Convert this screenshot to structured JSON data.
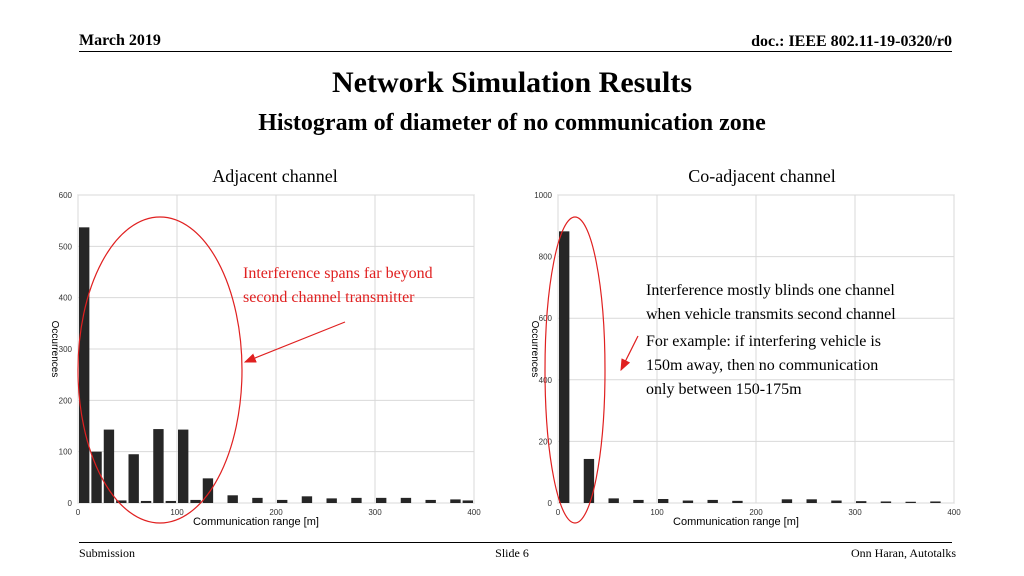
{
  "header": {
    "date": "March 2019",
    "doc": "doc.: IEEE 802.11-19-0320/r0"
  },
  "title": "Network Simulation Results",
  "subtitle": "Histogram of diameter of no communication zone",
  "colors": {
    "bar": "#262626",
    "annotation": "#e02020",
    "grid": "#d9d9d9"
  },
  "annotations": {
    "left": [
      "Interference spans far beyond",
      "second channel transmitter"
    ],
    "right1": [
      "Interference mostly blinds one channel",
      "when vehicle transmits second channel"
    ],
    "right2": [
      "For example: if interfering vehicle is",
      "150m away, then no communication",
      "only between 150-175m"
    ]
  },
  "footer": {
    "left": "Submission",
    "center": "Slide 6",
    "right": "Onn Haran, Autotalks"
  },
  "chart_data": [
    {
      "type": "bar",
      "panel_label": "Adjacent channel",
      "xlabel": "Communication range [m]",
      "ylabel": "Occurrences",
      "xlim": [
        0,
        400
      ],
      "ylim": [
        0,
        600
      ],
      "xticks": [
        0,
        100,
        200,
        300,
        400
      ],
      "yticks": [
        0,
        100,
        200,
        300,
        400,
        500,
        600
      ],
      "bin_width": 12.5,
      "x": [
        6.25,
        18.75,
        31.25,
        43.75,
        56.25,
        68.75,
        81.25,
        93.75,
        106.25,
        118.75,
        131.25,
        143.75,
        156.25,
        168.75,
        181.25,
        193.75,
        206.25,
        218.75,
        231.25,
        243.75,
        256.25,
        268.75,
        281.25,
        293.75,
        306.25,
        318.75,
        331.25,
        343.75,
        356.25,
        368.75,
        381.25,
        393.75
      ],
      "values": [
        537,
        100,
        143,
        5,
        95,
        4,
        144,
        4,
        143,
        6,
        48,
        0,
        15,
        0,
        10,
        0,
        6,
        0,
        13,
        0,
        9,
        0,
        10,
        0,
        10,
        0,
        10,
        0,
        6,
        0,
        7,
        5
      ]
    },
    {
      "type": "bar",
      "panel_label": "Co-adjacent channel",
      "xlabel": "Communication range [m]",
      "ylabel": "Occurrences",
      "xlim": [
        0,
        400
      ],
      "ylim": [
        0,
        1000
      ],
      "xticks": [
        0,
        100,
        200,
        300,
        400
      ],
      "yticks": [
        0,
        200,
        400,
        600,
        800,
        1000
      ],
      "bin_width": 12.5,
      "x": [
        6.25,
        18.75,
        31.25,
        43.75,
        56.25,
        68.75,
        81.25,
        93.75,
        106.25,
        118.75,
        131.25,
        143.75,
        156.25,
        168.75,
        181.25,
        193.75,
        206.25,
        218.75,
        231.25,
        243.75,
        256.25,
        268.75,
        281.25,
        293.75,
        306.25,
        318.75,
        331.25,
        343.75,
        356.25,
        368.75,
        381.25,
        393.75
      ],
      "values": [
        882,
        0,
        143,
        0,
        15,
        0,
        10,
        0,
        13,
        0,
        8,
        0,
        10,
        0,
        7,
        0,
        0,
        0,
        12,
        0,
        12,
        0,
        8,
        0,
        6,
        0,
        5,
        0,
        4,
        0,
        5,
        0
      ]
    }
  ]
}
